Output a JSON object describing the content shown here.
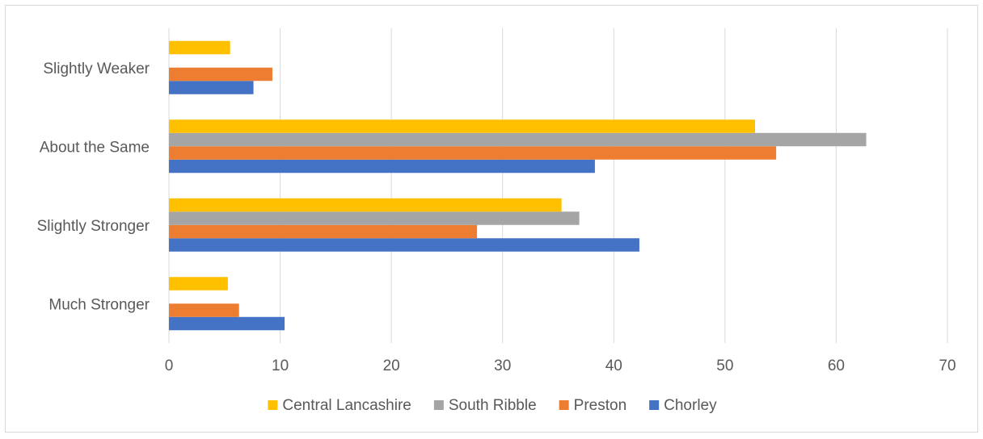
{
  "chart_data": {
    "type": "bar",
    "orientation": "horizontal",
    "categories": [
      "Much Stronger",
      "Slightly Stronger",
      "About the Same",
      "Slightly Weaker"
    ],
    "series": [
      {
        "name": "Chorley",
        "color": "#4472C4",
        "values": [
          10.4,
          42.3,
          38.3,
          7.6
        ]
      },
      {
        "name": "Preston",
        "color": "#ED7D31",
        "values": [
          6.3,
          27.7,
          54.6,
          9.3
        ]
      },
      {
        "name": "South Ribble",
        "color": "#A5A5A5",
        "values": [
          0,
          36.9,
          62.7,
          0
        ]
      },
      {
        "name": "Central Lancashire",
        "color": "#FFC000",
        "values": [
          5.3,
          35.3,
          52.7,
          5.5
        ]
      }
    ],
    "xlim": [
      0,
      70
    ],
    "xticks": [
      0,
      10,
      20,
      30,
      40,
      50,
      60,
      70
    ],
    "legend_order": [
      "Central Lancashire",
      "South Ribble",
      "Preston",
      "Chorley"
    ],
    "legend_position": "bottom",
    "grid": true,
    "gridline_color": "#d9d9d9"
  }
}
